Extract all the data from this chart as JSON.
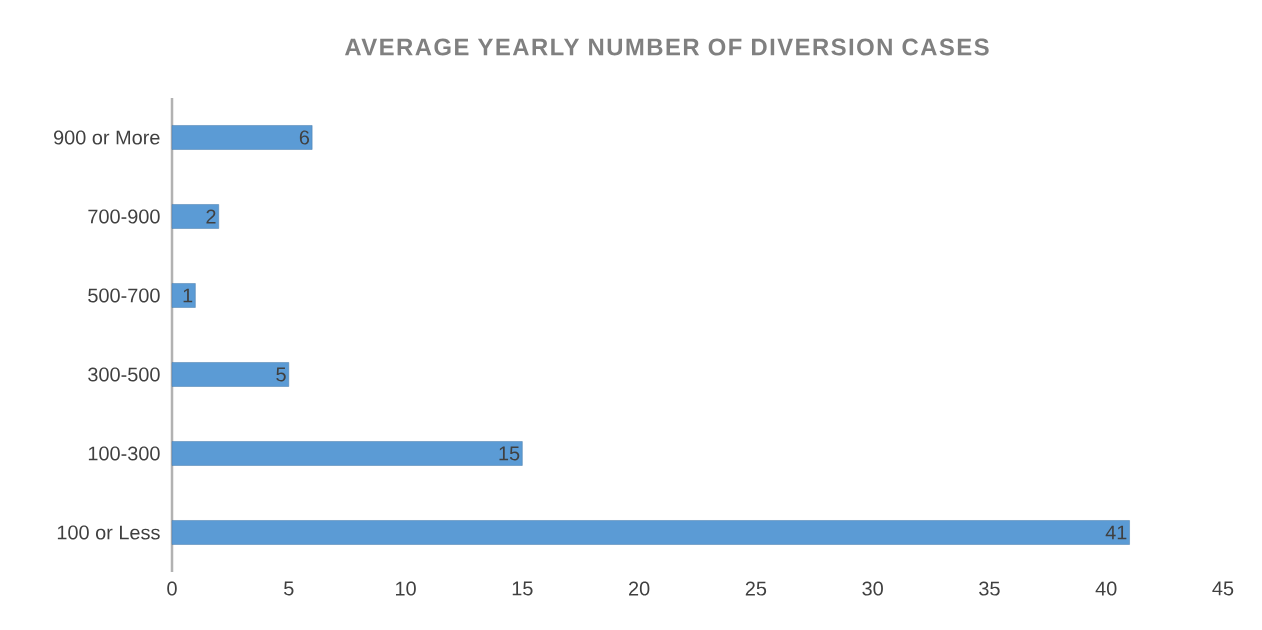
{
  "chart_data": {
    "type": "bar",
    "orientation": "horizontal",
    "title": "AVERAGE YEARLY NUMBER OF DIVERSION CASES",
    "categories": [
      "900 or More",
      "700-900",
      "500-700",
      "300-500",
      "100-300",
      "100 or Less"
    ],
    "values": [
      6,
      2,
      1,
      5,
      15,
      41
    ],
    "color": "#5b9bd5",
    "xlim": [
      0,
      45
    ],
    "xticks": [
      0,
      5,
      10,
      15,
      20,
      25,
      30,
      35,
      40,
      45
    ],
    "data_labels": true,
    "grid": false
  }
}
